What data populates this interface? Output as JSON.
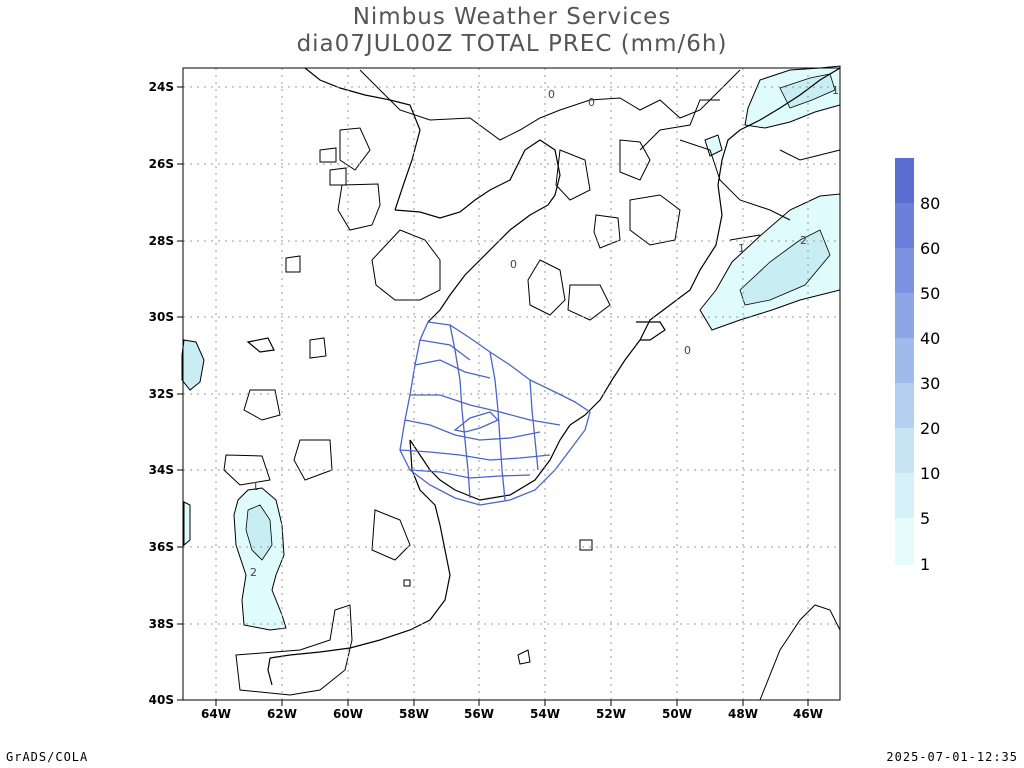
{
  "title": {
    "line1": "Nimbus Weather Services",
    "line2": "dia07JUL00Z TOTAL PREC (mm/6h)"
  },
  "footer": {
    "left": "GrADS/COLA",
    "right": "2025-07-01-12:35"
  },
  "map": {
    "lon_range": [
      -65,
      -45
    ],
    "lat_range": [
      -40,
      -23.5
    ],
    "lon_ticks": [
      "64W",
      "62W",
      "60W",
      "58W",
      "56W",
      "54W",
      "52W",
      "50W",
      "48W",
      "46W"
    ],
    "lat_ticks": [
      "24S",
      "26S",
      "28S",
      "30S",
      "32S",
      "34S",
      "36S",
      "38S",
      "40S"
    ],
    "contour_labels": [
      {
        "text": "0"
      },
      {
        "text": "0"
      },
      {
        "text": "0"
      },
      {
        "text": "0"
      },
      {
        "text": "1"
      },
      {
        "text": "2"
      },
      {
        "text": "1"
      },
      {
        "text": "2"
      },
      {
        "text": "1"
      }
    ]
  },
  "legend": {
    "labels": [
      "80",
      "60",
      "50",
      "40",
      "30",
      "20",
      "10",
      "5",
      "1"
    ],
    "colors": [
      "#5a6ed2",
      "#6b80da",
      "#7b92e0",
      "#8ca6e6",
      "#9fbbec",
      "#b4d0f0",
      "#c6e4f4",
      "#d6f2f8",
      "#e6fcfc"
    ]
  },
  "colors": {
    "state_borders": "#4a64c8",
    "coast": "#000000",
    "contour": "#000000",
    "precip_fill_light": "#e0fbfc",
    "precip_fill_mid": "#c8eef4",
    "grid": "#999999"
  }
}
